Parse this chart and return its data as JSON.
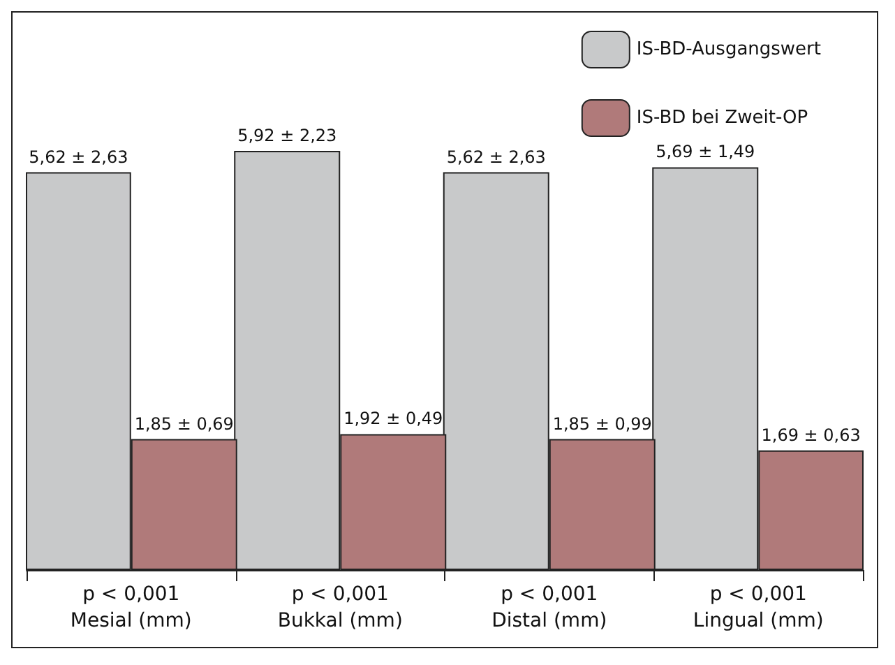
{
  "chart_data": {
    "type": "bar",
    "categories": [
      "p < 0,001\nMesial (mm)",
      "p < 0,001\nBukkal (mm)",
      "p < 0,001\nDistal (mm)",
      "p < 0,001\nLingual (mm)"
    ],
    "series": [
      {
        "name": "IS-BD-Ausgangswert",
        "color": "#c8c9ca",
        "values": [
          5.62,
          5.92,
          5.62,
          5.69
        ],
        "value_labels": [
          "5,62 ± 2,63",
          "5,92 ± 2,23",
          "5,62 ± 2,63",
          "5,69 ± 1,49"
        ]
      },
      {
        "name": "IS-BD bei Zweit-OP",
        "color": "#b07a7a",
        "values": [
          1.85,
          1.92,
          1.85,
          1.69
        ],
        "value_labels": [
          "1,85 ± 0,69",
          "1,92 ± 0,49",
          "1,85 ± 0,99",
          "1,69 ± 0,63"
        ]
      }
    ],
    "legend": "top right",
    "grid": false
  }
}
